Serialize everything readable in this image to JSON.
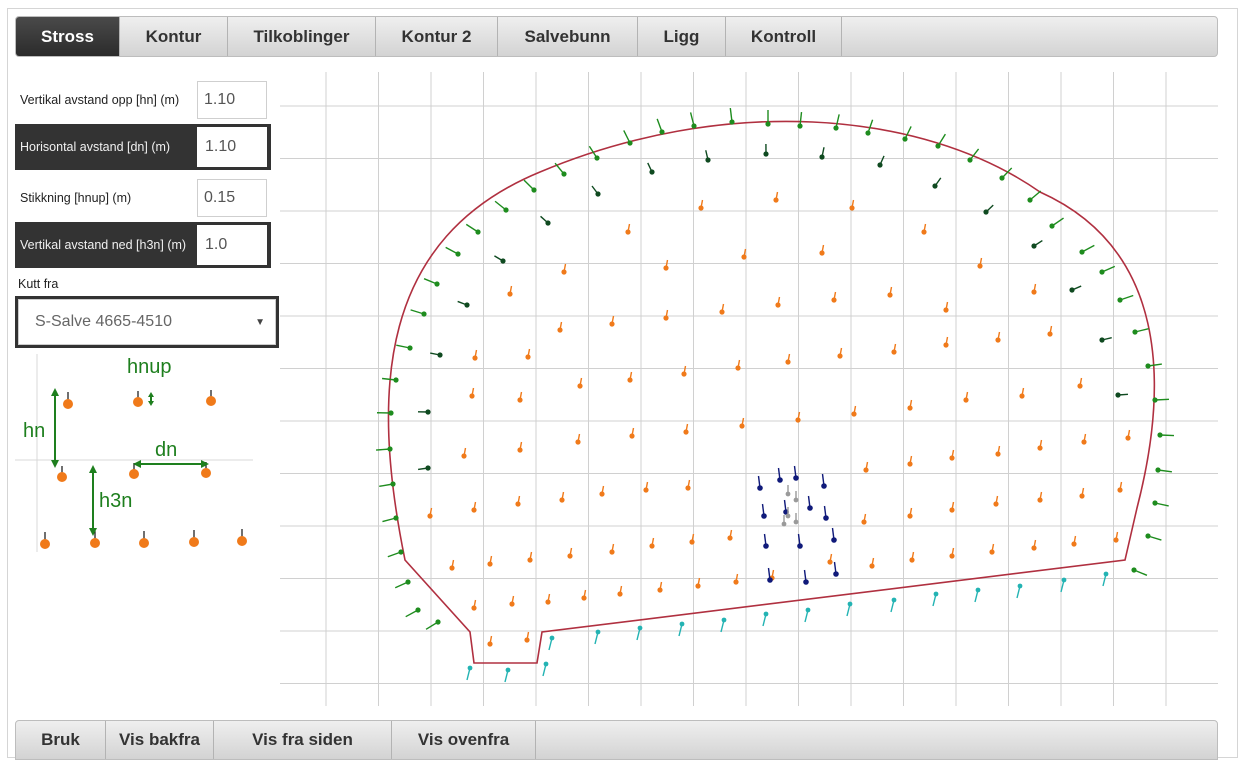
{
  "tabs": [
    {
      "label": "Stross",
      "active": true
    },
    {
      "label": "Kontur",
      "active": false
    },
    {
      "label": "Tilkoblinger",
      "active": false
    },
    {
      "label": "Kontur 2",
      "active": false
    },
    {
      "label": "Salvebunn",
      "active": false
    },
    {
      "label": "Ligg",
      "active": false
    },
    {
      "label": "Kontroll",
      "active": false
    }
  ],
  "form": {
    "fields": [
      {
        "label": "Vertikal avstand opp [hn] (m)",
        "value": "1.10"
      },
      {
        "label": "Horisontal avstand [dn] (m)",
        "value": "1.10"
      },
      {
        "label": "Stikkning [hnup] (m)",
        "value": "0.15"
      },
      {
        "label": "Vertikal avstand ned [h3n] (m)",
        "value": "1.0"
      }
    ],
    "cut_label": "Kutt fra",
    "cut_value": "S-Salve 4665-4510",
    "cut_caret": "▼"
  },
  "legend": {
    "hnup": "hnup",
    "hn": "hn",
    "dn": "dn",
    "h3n": "h3n"
  },
  "bottom": [
    "Bruk",
    "Vis bakfra",
    "Vis fra siden",
    "Vis ovenfra"
  ],
  "colors": {
    "tab_active_bg": "#333333",
    "outline": "#b03040",
    "grid": "#d0d0d0",
    "hole_orange": "#f07a1a",
    "hole_green": "#1e8c1e",
    "hole_darkgreen": "#0f4a20",
    "hole_navy": "#101a7a",
    "hole_cyan": "#23b3b3",
    "hole_grey": "#9a9a9a",
    "legend_green": "#1e7f1e"
  }
}
